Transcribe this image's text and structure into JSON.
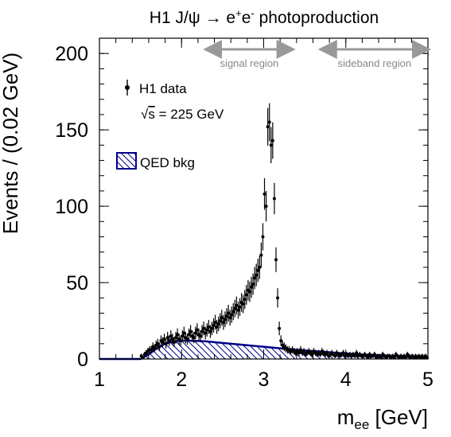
{
  "chart_data": {
    "type": "scatter",
    "title": "H1 J/ψ → e⁺e⁻ photoproduction",
    "title_parts": {
      "prefix": "H1 J/ψ → e",
      "sup1": "+",
      "mid": "e",
      "sup2": "-",
      "suffix": " photoproduction"
    },
    "xlabel": "m",
    "xlabel_sub": "ee",
    "xlabel_unit": " [GeV]",
    "ylabel": "Events / (0.02 GeV)",
    "xlim": [
      1,
      5
    ],
    "ylim": [
      0,
      210
    ],
    "xticks": [
      1,
      2,
      3,
      4,
      5
    ],
    "yticks": [
      0,
      50,
      100,
      150,
      200
    ],
    "regions": [
      {
        "label": "signal region",
        "x": [
          2.3,
          3.35
        ]
      },
      {
        "label": "sideband region",
        "x": [
          3.7,
          5.0
        ]
      }
    ],
    "legend": {
      "placement": "top-left",
      "data_label": "H1 data",
      "energy_label": "√s = 225 GeV",
      "energy_parts": {
        "root": "√",
        "over": "s",
        "rest": " = 225 GeV"
      },
      "bkg_label": "QED bkg"
    },
    "colors": {
      "data": "#000000",
      "bkg": "#00008b",
      "arrow": "#999999"
    },
    "series": [
      {
        "name": "H1 data",
        "x": [
          1.51,
          1.53,
          1.55,
          1.57,
          1.59,
          1.61,
          1.63,
          1.65,
          1.67,
          1.69,
          1.71,
          1.73,
          1.75,
          1.77,
          1.79,
          1.81,
          1.83,
          1.85,
          1.87,
          1.89,
          1.91,
          1.93,
          1.95,
          1.97,
          1.99,
          2.01,
          2.03,
          2.05,
          2.07,
          2.09,
          2.11,
          2.13,
          2.15,
          2.17,
          2.19,
          2.21,
          2.23,
          2.25,
          2.27,
          2.29,
          2.31,
          2.33,
          2.35,
          2.37,
          2.39,
          2.41,
          2.43,
          2.45,
          2.47,
          2.49,
          2.51,
          2.53,
          2.55,
          2.57,
          2.59,
          2.61,
          2.63,
          2.65,
          2.67,
          2.69,
          2.71,
          2.73,
          2.75,
          2.77,
          2.79,
          2.81,
          2.83,
          2.85,
          2.87,
          2.89,
          2.91,
          2.93,
          2.95,
          2.97,
          2.99,
          3.01,
          3.03,
          3.05,
          3.07,
          3.09,
          3.11,
          3.13,
          3.15,
          3.17,
          3.19,
          3.21,
          3.23,
          3.25,
          3.27,
          3.29,
          3.31,
          3.33,
          3.35,
          3.37,
          3.39,
          3.41,
          3.43,
          3.45,
          3.47,
          3.49,
          3.51,
          3.53,
          3.55,
          3.57,
          3.59,
          3.61,
          3.63,
          3.65,
          3.67,
          3.69,
          3.71,
          3.73,
          3.75,
          3.77,
          3.79,
          3.81,
          3.83,
          3.85,
          3.87,
          3.89,
          3.91,
          3.93,
          3.95,
          3.97,
          3.99,
          4.01,
          4.03,
          4.05,
          4.07,
          4.09,
          4.11,
          4.13,
          4.15,
          4.17,
          4.19,
          4.21,
          4.23,
          4.25,
          4.27,
          4.29,
          4.31,
          4.33,
          4.35,
          4.37,
          4.39,
          4.41,
          4.43,
          4.45,
          4.47,
          4.49,
          4.51,
          4.53,
          4.55,
          4.57,
          4.59,
          4.61,
          4.63,
          4.65,
          4.67,
          4.69,
          4.71,
          4.73,
          4.75,
          4.77,
          4.79,
          4.81,
          4.83,
          4.85,
          4.87,
          4.89,
          4.91,
          4.93,
          4.95,
          4.97,
          4.99
        ],
        "y": [
          2,
          1,
          3,
          4,
          5,
          6,
          6,
          8,
          7,
          9,
          10,
          8,
          12,
          11,
          13,
          10,
          14,
          12,
          15,
          13,
          11,
          14,
          16,
          13,
          12,
          15,
          17,
          14,
          13,
          16,
          18,
          15,
          14,
          17,
          19,
          16,
          15,
          18,
          20,
          17,
          19,
          21,
          18,
          20,
          22,
          24,
          21,
          23,
          25,
          27,
          24,
          26,
          28,
          30,
          27,
          29,
          31,
          33,
          35,
          32,
          34,
          37,
          36,
          39,
          42,
          45,
          44,
          47,
          49,
          53,
          55,
          58,
          60,
          68,
          80,
          108,
          100,
          152,
          155,
          140,
          143,
          105,
          65,
          40,
          20,
          12,
          9,
          8,
          7,
          6,
          6,
          5,
          6,
          5,
          4,
          5,
          4,
          6,
          4,
          5,
          3,
          4,
          5,
          4,
          3,
          5,
          4,
          3,
          4,
          3,
          5,
          4,
          3,
          4,
          2,
          3,
          4,
          3,
          2,
          4,
          3,
          2,
          3,
          4,
          2,
          3,
          2,
          3,
          2,
          3,
          2,
          4,
          2,
          3,
          2,
          2,
          3,
          2,
          1,
          3,
          2,
          2,
          3,
          1,
          2,
          2,
          1,
          3,
          2,
          1,
          2,
          2,
          1,
          2,
          1,
          3,
          2,
          1,
          2,
          1,
          2,
          1,
          3,
          2,
          1,
          2,
          1,
          2,
          1,
          2,
          1,
          2,
          1,
          2,
          1
        ]
      },
      {
        "name": "QED bkg",
        "x": [
          1.5,
          1.6,
          1.7,
          1.8,
          1.9,
          2.0,
          2.1,
          2.2,
          2.3,
          2.4,
          2.5,
          2.6,
          2.7,
          2.8,
          2.9,
          3.0,
          3.1,
          3.2,
          3.3,
          3.4,
          3.5,
          3.6,
          3.7,
          3.8,
          3.9,
          4.0,
          4.2,
          4.4,
          4.6,
          4.8,
          5.0
        ],
        "y": [
          0,
          3,
          7,
          10,
          11.5,
          12,
          12,
          11.8,
          11.5,
          11,
          10.5,
          10,
          9.5,
          9,
          8.5,
          8,
          7.5,
          7,
          6.5,
          6,
          5.6,
          5.2,
          4.8,
          4.4,
          4,
          3.6,
          3,
          2.5,
          2,
          1.5,
          1
        ]
      }
    ]
  }
}
